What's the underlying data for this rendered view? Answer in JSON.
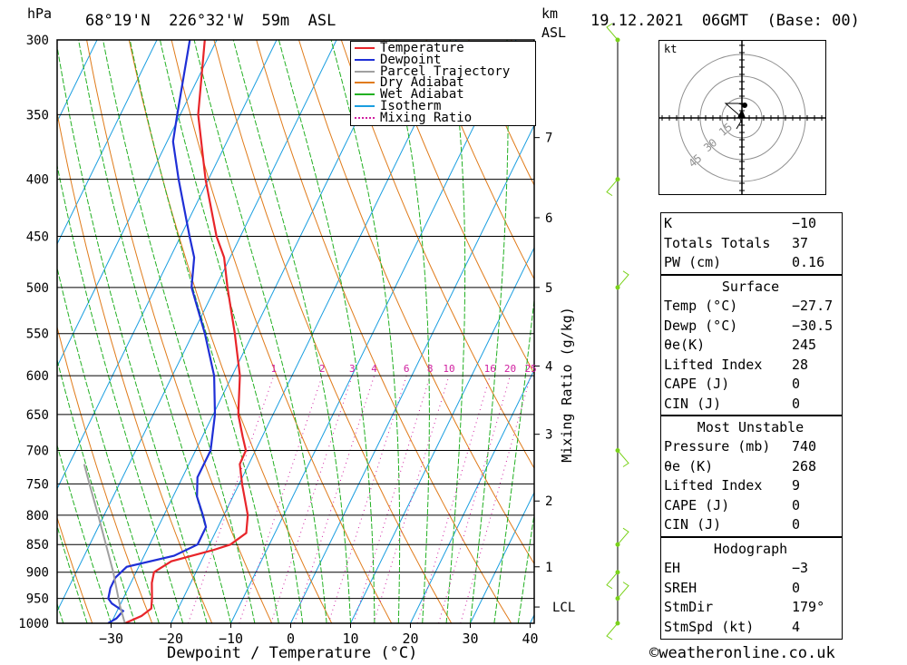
{
  "header": {
    "hpa_label": "hPa",
    "location": "68°19'N  226°32'W  59m  ASL",
    "km_label": "km",
    "asl_label": "ASL",
    "datetime": "19.12.2021  06GMT  (Base: 00)"
  },
  "legend": [
    {
      "label": "Temperature",
      "color": "#e8252a",
      "style": "solid"
    },
    {
      "label": "Dewpoint",
      "color": "#1f2fd6",
      "style": "solid"
    },
    {
      "label": "Parcel Trajectory",
      "color": "#a0a0a0",
      "style": "solid"
    },
    {
      "label": "Dry Adiabat",
      "color": "#e07b1a",
      "style": "solid"
    },
    {
      "label": "Wet Adiabat",
      "color": "#22b022",
      "style": "solid"
    },
    {
      "label": "Isotherm",
      "color": "#1a9ee0",
      "style": "solid"
    },
    {
      "label": "Mixing Ratio",
      "color": "#d01fa0",
      "style": "dotted"
    }
  ],
  "colors": {
    "temperature": "#e8252a",
    "dewpoint": "#1f2fd6",
    "parcel": "#a0a0a0",
    "dry_adiabat": "#e07b1a",
    "wet_adiabat": "#22b022",
    "isotherm": "#1a9ee0",
    "mixing_ratio": "#d01fa0",
    "wind_barb": "#7ad21a",
    "hodo_grid": "#909090"
  },
  "chart_data": {
    "type": "line",
    "xlabel": "Dewpoint / Temperature (°C)",
    "ylabel": "hPa",
    "y_scale": "log",
    "xlim": [
      -40,
      40
    ],
    "ylim": [
      1000,
      300
    ],
    "pressure_levels": [
      300,
      350,
      400,
      450,
      500,
      550,
      600,
      650,
      700,
      750,
      800,
      850,
      900,
      950,
      1000
    ],
    "x_ticks": [
      -30,
      -20,
      -10,
      0,
      10,
      20,
      30,
      40
    ],
    "grid": true,
    "skewed_temperature_axis": true,
    "km_ticks": [
      {
        "km": "1",
        "p": 890
      },
      {
        "km": "2",
        "p": 777
      },
      {
        "km": "3",
        "p": 677
      },
      {
        "km": "4",
        "p": 588
      },
      {
        "km": "5",
        "p": 500
      },
      {
        "km": "6",
        "p": 433
      },
      {
        "km": "7",
        "p": 367
      }
    ],
    "lcl": {
      "label": "LCL",
      "p": 967
    },
    "secondary_ylabel": "Mixing Ratio (g/kg)",
    "mixing_ratio_labels": [
      "1",
      "2",
      "3",
      "4",
      "6",
      "8",
      "10",
      "16",
      "20",
      "25"
    ],
    "series": [
      {
        "name": "Temperature",
        "points": [
          [
            1000,
            -27.7
          ],
          [
            985,
            -25.5
          ],
          [
            970,
            -24.5
          ],
          [
            950,
            -25.2
          ],
          [
            920,
            -26.5
          ],
          [
            900,
            -27.0
          ],
          [
            880,
            -25.0
          ],
          [
            860,
            -19.0
          ],
          [
            850,
            -16.5
          ],
          [
            830,
            -14.8
          ],
          [
            800,
            -16.0
          ],
          [
            750,
            -19.5
          ],
          [
            720,
            -21.5
          ],
          [
            700,
            -21.6
          ],
          [
            680,
            -23.3
          ],
          [
            650,
            -25.8
          ],
          [
            600,
            -28.7
          ],
          [
            550,
            -33.0
          ],
          [
            500,
            -38.0
          ],
          [
            470,
            -41.0
          ],
          [
            450,
            -44.0
          ],
          [
            400,
            -50.5
          ],
          [
            350,
            -57.0
          ],
          [
            300,
            -62.0
          ]
        ]
      },
      {
        "name": "Dewpoint",
        "points": [
          [
            1000,
            -30.5
          ],
          [
            990,
            -29.5
          ],
          [
            975,
            -29.0
          ],
          [
            960,
            -31.5
          ],
          [
            950,
            -32.5
          ],
          [
            930,
            -33.0
          ],
          [
            910,
            -33.0
          ],
          [
            890,
            -32.0
          ],
          [
            870,
            -25.0
          ],
          [
            850,
            -22.0
          ],
          [
            820,
            -22.0
          ],
          [
            800,
            -23.5
          ],
          [
            770,
            -26.0
          ],
          [
            740,
            -27.5
          ],
          [
            700,
            -27.5
          ],
          [
            650,
            -29.7
          ],
          [
            600,
            -33.0
          ],
          [
            550,
            -38.0
          ],
          [
            500,
            -44.0
          ],
          [
            470,
            -46.0
          ],
          [
            450,
            -48.5
          ],
          [
            400,
            -55.0
          ],
          [
            370,
            -59.0
          ],
          [
            350,
            -60.5
          ],
          [
            300,
            -64.5
          ]
        ]
      },
      {
        "name": "Parcel Trajectory",
        "points": [
          [
            1000,
            -27.7
          ],
          [
            967,
            -29.8
          ],
          [
            950,
            -30.8
          ],
          [
            900,
            -33.8
          ],
          [
            850,
            -37.3
          ],
          [
            800,
            -41.0
          ],
          [
            750,
            -45.0
          ],
          [
            720,
            -47.5
          ]
        ]
      }
    ],
    "wind_levels": [
      1000,
      950,
      900,
      850,
      700,
      500,
      400,
      300
    ]
  },
  "hodograph": {
    "unit": "kt",
    "ring_labels": [
      "15",
      "30",
      "45"
    ]
  },
  "indices": [
    {
      "label": "K",
      "value": "-10"
    },
    {
      "label": "Totals Totals",
      "value": "37"
    },
    {
      "label": "PW (cm)",
      "value": "0.16"
    }
  ],
  "surface": {
    "title": "Surface",
    "rows": [
      {
        "label": "Temp (°C)",
        "value": "-27.7"
      },
      {
        "label": "Dewp (°C)",
        "value": "-30.5"
      },
      {
        "label": "θe(K)",
        "value": "245"
      },
      {
        "label": "Lifted Index",
        "value": "28"
      },
      {
        "label": "CAPE (J)",
        "value": "0"
      },
      {
        "label": "CIN (J)",
        "value": "0"
      }
    ]
  },
  "most_unstable": {
    "title": "Most Unstable",
    "rows": [
      {
        "label": "Pressure (mb)",
        "value": "740"
      },
      {
        "label": "θe (K)",
        "value": "268"
      },
      {
        "label": "Lifted Index",
        "value": "9"
      },
      {
        "label": "CAPE (J)",
        "value": "0"
      },
      {
        "label": "CIN (J)",
        "value": "0"
      }
    ]
  },
  "hodograph_table": {
    "title": "Hodograph",
    "rows": [
      {
        "label": "EH",
        "value": "-3"
      },
      {
        "label": "SREH",
        "value": "0"
      },
      {
        "label": "StmDir",
        "value": "179°"
      },
      {
        "label": "StmSpd (kt)",
        "value": "4"
      }
    ]
  },
  "footer": {
    "credit": "©weatheronline.co.uk"
  }
}
